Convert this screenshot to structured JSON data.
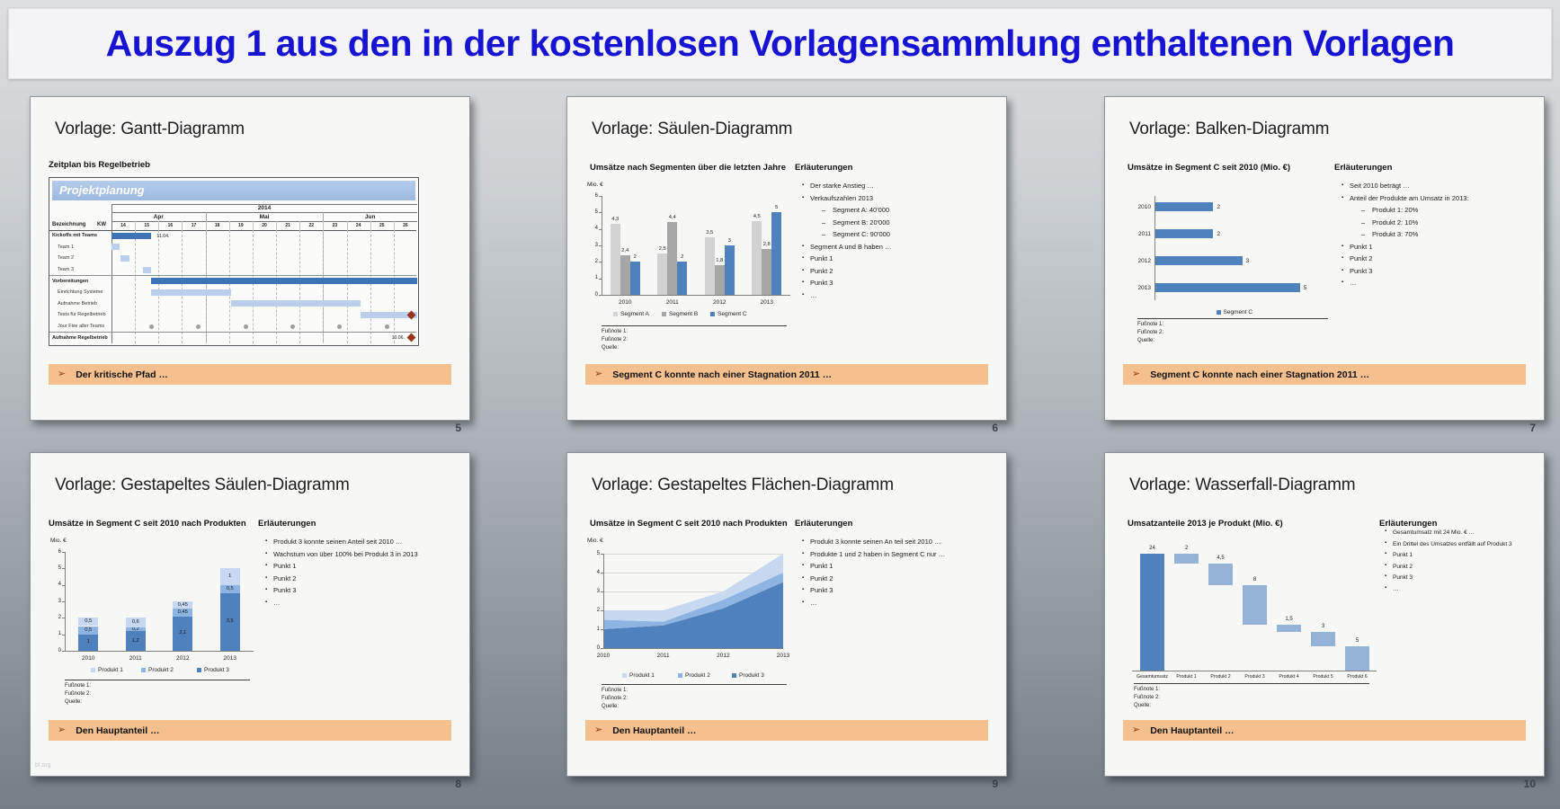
{
  "banner": {
    "title": "Auszug 1 aus den in der kostenlosen Vorlagensammlung enthaltenen Vorlagen"
  },
  "labels": {
    "erlaeuterungen": "Erläuterungen"
  },
  "footnotes": [
    "Fußnote 1:",
    "Fußnote 2:",
    "Quelle:"
  ],
  "colors": {
    "steel_blue": "#4f81bd",
    "light_blue": "#b9cfec",
    "mid_blue": "#8db4e2",
    "pale_blue": "#c6d9f1",
    "gray_light": "#d2d2d2",
    "gray_mid": "#a6a6a6",
    "callout_bg": "#f5c08d",
    "milestone_red": "#96351a",
    "title_blue": "#1713d2"
  },
  "slides": [
    {
      "title": "Vorlage: Gantt-Diagramm",
      "page": "5",
      "chart_title": "Zeitplan bis Regelbetrieb",
      "callout": "Der kritische Pfad …"
    },
    {
      "title": "Vorlage: Säulen-Diagramm",
      "page": "6",
      "chart_title": "Umsätze nach Segmenten über die letzten Jahre",
      "callout": "Segment C konnte nach einer Stagnation 2011 …",
      "bullets": [
        {
          "t": "Der starke Anstieg …",
          "l": 1
        },
        {
          "t": "Verkaufszahlen 2013",
          "l": 1
        },
        {
          "t": "Segment A: 40'000",
          "l": 2
        },
        {
          "t": "Segment B: 20'000",
          "l": 2
        },
        {
          "t": "Segment C: 90'000",
          "l": 2
        },
        {
          "t": "Segment A und B haben …",
          "l": 1
        },
        {
          "t": "Punkt 1",
          "l": 1
        },
        {
          "t": "Punkt 2",
          "l": 1
        },
        {
          "t": "Punkt 3",
          "l": 1
        },
        {
          "t": "…",
          "l": 1
        }
      ]
    },
    {
      "title": "Vorlage: Balken-Diagramm",
      "page": "7",
      "chart_title": "Umsätze in Segment C seit 2010 (Mio. €)",
      "callout": "Segment C konnte nach einer Stagnation 2011 …",
      "bullets": [
        {
          "t": "Seit 2010 beträgt …",
          "l": 1
        },
        {
          "t": "Anteil der Produkte am Umsatz in 2013:",
          "l": 1
        },
        {
          "t": "Produkt 1: 20%",
          "l": 2
        },
        {
          "t": "Produkt 2: 10%",
          "l": 2
        },
        {
          "t": "Produkt 3: 70%",
          "l": 2
        },
        {
          "t": "Punkt 1",
          "l": 1
        },
        {
          "t": "Punkt 2",
          "l": 1
        },
        {
          "t": "Punkt 3",
          "l": 1
        },
        {
          "t": "…",
          "l": 1
        }
      ]
    },
    {
      "title": "Vorlage: Gestapeltes Säulen-Diagramm",
      "page": "8",
      "chart_title": "Umsätze in Segment C seit 2010 nach Produkten",
      "callout": "Den Hauptanteil …",
      "watermark": "bl.org",
      "bullets": [
        {
          "t": "Produkt 3 konnte seinen Anteil seit 2010 …",
          "l": 1
        },
        {
          "t": "Wachstum von über 100% bei Produkt 3 in 2013",
          "l": 1
        },
        {
          "t": "Punkt 1",
          "l": 1
        },
        {
          "t": "Punkt 2",
          "l": 1
        },
        {
          "t": "Punkt 3",
          "l": 1
        },
        {
          "t": "…",
          "l": 1
        }
      ]
    },
    {
      "title": "Vorlage: Gestapeltes Flächen-Diagramm",
      "page": "9",
      "chart_title": "Umsätze in Segment C seit 2010 nach Produkten",
      "callout": "Den Hauptanteil …",
      "bullets": [
        {
          "t": "Produkt 3 konnte seinen An teil seit 2010 …",
          "l": 1
        },
        {
          "t": "Produkte 1 und 2 haben in Segment C nur …",
          "l": 1
        },
        {
          "t": "Punkt 1",
          "l": 1
        },
        {
          "t": "Punkt 2",
          "l": 1
        },
        {
          "t": "Punkt 3",
          "l": 1
        },
        {
          "t": "…",
          "l": 1
        }
      ]
    },
    {
      "title": "Vorlage: Wasserfall-Diagramm",
      "page": "10",
      "chart_title": "Umsatzanteile 2013 je Produkt (Mio. €)",
      "callout": "Den Hauptanteil …",
      "bullets": [
        {
          "t": "Gesamtumsatz mit 24 Mio. € …",
          "l": 1
        },
        {
          "t": "Ein Drittel des Umsatzes entfällt auf Produkt 3",
          "l": 1
        },
        {
          "t": "Punkt 1",
          "l": 1
        },
        {
          "t": "Punkt 2",
          "l": 1
        },
        {
          "t": "Punkt 3",
          "l": 1
        },
        {
          "t": "…",
          "l": 1
        }
      ]
    }
  ],
  "chart_data": [
    {
      "type": "gantt",
      "band_title": "Projektplanung",
      "year": "2014",
      "col_header": "Bezeichnung",
      "kw_header": "KW",
      "week_start": 14,
      "weeks": [
        "14",
        "15",
        "16",
        "17",
        "18",
        "19",
        "20",
        "21",
        "22",
        "23",
        "24",
        "25",
        "26"
      ],
      "months": [
        {
          "label": "Apr",
          "from": 14,
          "to": 17
        },
        {
          "label": "Mai",
          "from": 18,
          "to": 22
        },
        {
          "label": "Jun",
          "from": 23,
          "to": 26
        }
      ],
      "rows": [
        {
          "label": "Kickoffs mit Teams",
          "group": true,
          "bar": {
            "start": 14,
            "end": 15.7,
            "style": "dark"
          },
          "note": "11.04.",
          "note_at": 15.85
        },
        {
          "label": "Team 1",
          "bar": {
            "start": 14,
            "end": 14.35,
            "style": "light"
          }
        },
        {
          "label": "Team 2",
          "bar": {
            "start": 14.4,
            "end": 14.75,
            "style": "light"
          }
        },
        {
          "label": "Team 3",
          "bar": {
            "start": 15.35,
            "end": 15.7,
            "style": "light"
          }
        },
        {
          "label": "Vorbereitungen",
          "group": true,
          "sep": true,
          "bar": {
            "start": 15.7,
            "end": 27,
            "style": "dark"
          }
        },
        {
          "label": "Einrichtung Systeme",
          "bar": {
            "start": 15.7,
            "end": 19.1,
            "style": "light"
          }
        },
        {
          "label": "Aufnahme Betrieb",
          "bar": {
            "start": 19.1,
            "end": 24.6,
            "style": "light"
          }
        },
        {
          "label": "Tests für Regelbetrieb",
          "bar": {
            "start": 24.6,
            "end": 27,
            "style": "light"
          },
          "milestone": 27
        },
        {
          "label": "Jour Fixe aller Teams",
          "dots": [
            15.7,
            17.7,
            19.7,
            21.7,
            23.7,
            25.7
          ]
        },
        {
          "label": "Aufnahme Regelbetrieb",
          "group": true,
          "sep": true,
          "milestone": 27,
          "note": "10.06.",
          "note_before": true
        }
      ]
    },
    {
      "type": "bar",
      "unit": "Mio. €",
      "ylim": [
        0,
        6
      ],
      "yticks": [
        "0",
        "1",
        "2",
        "3",
        "4",
        "5",
        "6"
      ],
      "categories": [
        "2010",
        "2011",
        "2012",
        "2013"
      ],
      "series": [
        {
          "name": "Segment A",
          "color": "#d2d2d2",
          "values": [
            4.3,
            2.5,
            3.5,
            4.5
          ],
          "labels": [
            "4,3",
            "2,5",
            "3,5",
            "4,5"
          ]
        },
        {
          "name": "Segment B",
          "color": "#a6a6a6",
          "values": [
            2.4,
            4.4,
            1.8,
            2.8
          ],
          "labels": [
            "2,4",
            "4,4",
            "1,8",
            "2,8"
          ]
        },
        {
          "name": "Segment C",
          "color": "#4f81bd",
          "values": [
            2,
            2,
            3,
            5
          ],
          "labels": [
            "2",
            "2",
            "3",
            "5"
          ]
        }
      ]
    },
    {
      "type": "bar-horizontal",
      "xlim": [
        0,
        6
      ],
      "categories": [
        "2010",
        "2011",
        "2012",
        "2013"
      ],
      "values": [
        2,
        2,
        3,
        5
      ],
      "labels": [
        "2",
        "2",
        "3",
        "5"
      ],
      "legend": "Segment C",
      "color": "#4f81bd"
    },
    {
      "type": "stacked-bar",
      "unit": "Mio. €",
      "ylim": [
        0,
        6
      ],
      "yticks": [
        "0",
        "1",
        "2",
        "3",
        "4",
        "5",
        "6"
      ],
      "categories": [
        "2010",
        "2011",
        "2012",
        "2013"
      ],
      "series": [
        {
          "name": "Produkt 1",
          "color": "#c6d9f1",
          "values": [
            0.5,
            0.6,
            0.45,
            1
          ],
          "labels": [
            "0,5",
            "0,6",
            "0,45",
            "1"
          ]
        },
        {
          "name": "Produkt 2",
          "color": "#8db4e2",
          "values": [
            0.5,
            0.2,
            0.45,
            0.5
          ],
          "labels": [
            "0,5",
            "0,2",
            "0,45",
            "0,5"
          ]
        },
        {
          "name": "Produkt 3",
          "color": "#4f81bd",
          "values": [
            1,
            1.2,
            2.1,
            3.5
          ],
          "labels": [
            "1",
            "1,2",
            "2,1",
            "3,5"
          ]
        }
      ]
    },
    {
      "type": "area",
      "unit": "Mio. €",
      "ylim": [
        0,
        5
      ],
      "yticks": [
        "0",
        "1",
        "2",
        "3",
        "4",
        "5"
      ],
      "x": [
        "2010",
        "2011",
        "2012",
        "2013"
      ],
      "series": [
        {
          "name": "Produkt 1",
          "color": "#c6d9f1",
          "values": [
            0.5,
            0.6,
            0.45,
            1
          ]
        },
        {
          "name": "Produkt 2",
          "color": "#8db4e2",
          "values": [
            0.5,
            0.2,
            0.45,
            0.5
          ]
        },
        {
          "name": "Produkt 3",
          "color": "#4f81bd",
          "values": [
            1,
            1.2,
            2.1,
            3.5
          ]
        }
      ]
    },
    {
      "type": "waterfall",
      "categories": [
        "Gesamtumsatz",
        "Produkt 1",
        "Produkt 2",
        "Produkt 3",
        "Produkt 4",
        "Produkt 5",
        "Produkt 6"
      ],
      "values": [
        24,
        2,
        4.5,
        8,
        1.5,
        3,
        5
      ],
      "labels": [
        "24",
        "2",
        "4,5",
        "8",
        "1,5",
        "3",
        "5"
      ],
      "total_color": "#4f81bd",
      "step_color": "#95b3d7"
    }
  ]
}
